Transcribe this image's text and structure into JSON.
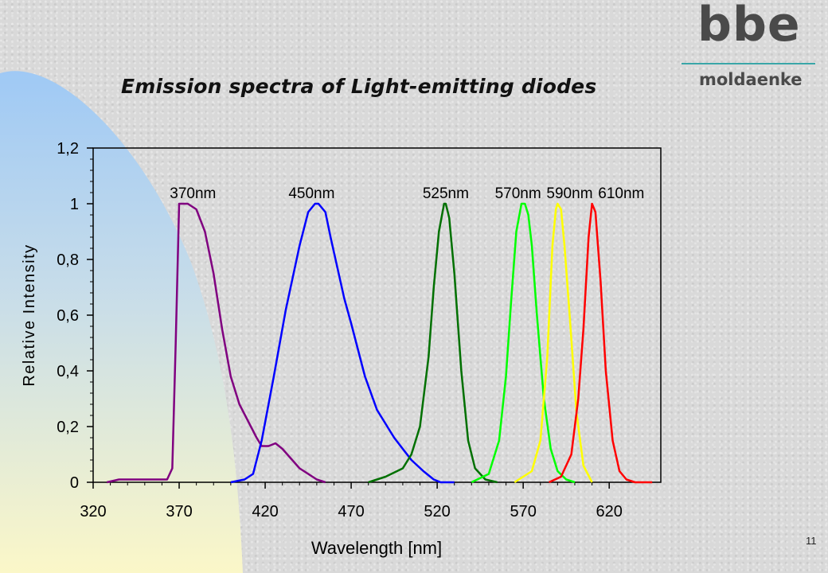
{
  "slide": {
    "title": "Emission spectra of Light-emitting diodes",
    "logo_text": "bbe",
    "logo_subtext": "moldaenke",
    "page_number": "11",
    "colors": {
      "background": "#d9d9d9",
      "decor_top": "#9fc9f5",
      "decor_bottom": "#fbf7c8",
      "logo_line": "#3aa6a8"
    }
  },
  "chart_data": {
    "type": "line",
    "title": "",
    "xlabel": "Wavelength [nm]",
    "ylabel": "Relative Intensity",
    "xlim": [
      320,
      650
    ],
    "ylim": [
      0,
      1.2
    ],
    "x_ticks": [
      320,
      370,
      420,
      470,
      520,
      570,
      620
    ],
    "y_ticks": [
      0,
      0.2,
      0.4,
      0.6,
      0.8,
      1,
      1.2
    ],
    "y_tick_labels": [
      "0",
      "0,2",
      "0,4",
      "0,6",
      "0,8",
      "1",
      "1,2"
    ],
    "grid": false,
    "legend": "none",
    "series": [
      {
        "name": "370nm",
        "color": "#800080",
        "x": [
          328,
          335,
          345,
          355,
          363,
          366,
          368,
          370,
          375,
          380,
          385,
          390,
          395,
          400,
          405,
          410,
          415,
          418,
          422,
          426,
          430,
          440,
          450,
          455
        ],
        "y": [
          0,
          0.01,
          0.01,
          0.01,
          0.01,
          0.05,
          0.5,
          1.0,
          1.0,
          0.98,
          0.9,
          0.75,
          0.55,
          0.38,
          0.28,
          0.22,
          0.16,
          0.13,
          0.13,
          0.14,
          0.12,
          0.05,
          0.01,
          0
        ]
      },
      {
        "name": "450nm",
        "color": "#0000ff",
        "x": [
          400,
          408,
          413,
          418,
          425,
          432,
          440,
          445,
          449,
          451,
          455,
          458,
          462,
          466,
          470,
          478,
          485,
          495,
          505,
          512,
          518,
          522,
          530
        ],
        "y": [
          0,
          0.01,
          0.03,
          0.15,
          0.38,
          0.62,
          0.85,
          0.97,
          1.0,
          1.0,
          0.97,
          0.88,
          0.77,
          0.66,
          0.57,
          0.38,
          0.26,
          0.16,
          0.08,
          0.04,
          0.01,
          0,
          0
        ]
      },
      {
        "name": "525nm",
        "color": "#007000",
        "x": [
          480,
          490,
          500,
          505,
          510,
          515,
          518,
          521,
          524,
          525,
          527,
          530,
          534,
          538,
          542,
          548,
          555
        ],
        "y": [
          0,
          0.02,
          0.05,
          0.1,
          0.2,
          0.45,
          0.7,
          0.9,
          1.0,
          1.0,
          0.95,
          0.75,
          0.4,
          0.15,
          0.05,
          0.01,
          0
        ]
      },
      {
        "name": "570nm",
        "color": "#00ff00",
        "x": [
          540,
          550,
          556,
          560,
          563,
          566,
          569,
          571,
          573,
          575,
          578,
          582,
          586,
          590,
          595,
          600
        ],
        "y": [
          0,
          0.03,
          0.15,
          0.38,
          0.65,
          0.9,
          1.0,
          1.0,
          0.96,
          0.85,
          0.6,
          0.3,
          0.12,
          0.04,
          0.01,
          0
        ]
      },
      {
        "name": "590nm",
        "color": "#ffff00",
        "x": [
          565,
          575,
          580,
          584,
          587,
          589,
          590,
          592,
          594,
          597,
          601,
          605,
          610
        ],
        "y": [
          0,
          0.04,
          0.15,
          0.45,
          0.85,
          0.98,
          1.0,
          0.98,
          0.85,
          0.6,
          0.25,
          0.06,
          0
        ]
      },
      {
        "name": "610nm",
        "color": "#ff0000",
        "x": [
          585,
          592,
          598,
          602,
          605,
          608,
          610,
          612,
          615,
          618,
          622,
          626,
          630,
          635,
          645
        ],
        "y": [
          0,
          0.02,
          0.1,
          0.3,
          0.55,
          0.88,
          1.0,
          0.97,
          0.72,
          0.4,
          0.15,
          0.04,
          0.01,
          0,
          0
        ]
      }
    ],
    "annotations": [
      {
        "text": "370nm",
        "x": 378,
        "y": 1.02
      },
      {
        "text": "450nm",
        "x": 447,
        "y": 1.02
      },
      {
        "text": "525nm",
        "x": 525,
        "y": 1.02
      },
      {
        "text": "570nm",
        "x": 567,
        "y": 1.02
      },
      {
        "text": "590nm",
        "x": 597,
        "y": 1.02
      },
      {
        "text": "610nm",
        "x": 627,
        "y": 1.02
      }
    ]
  }
}
